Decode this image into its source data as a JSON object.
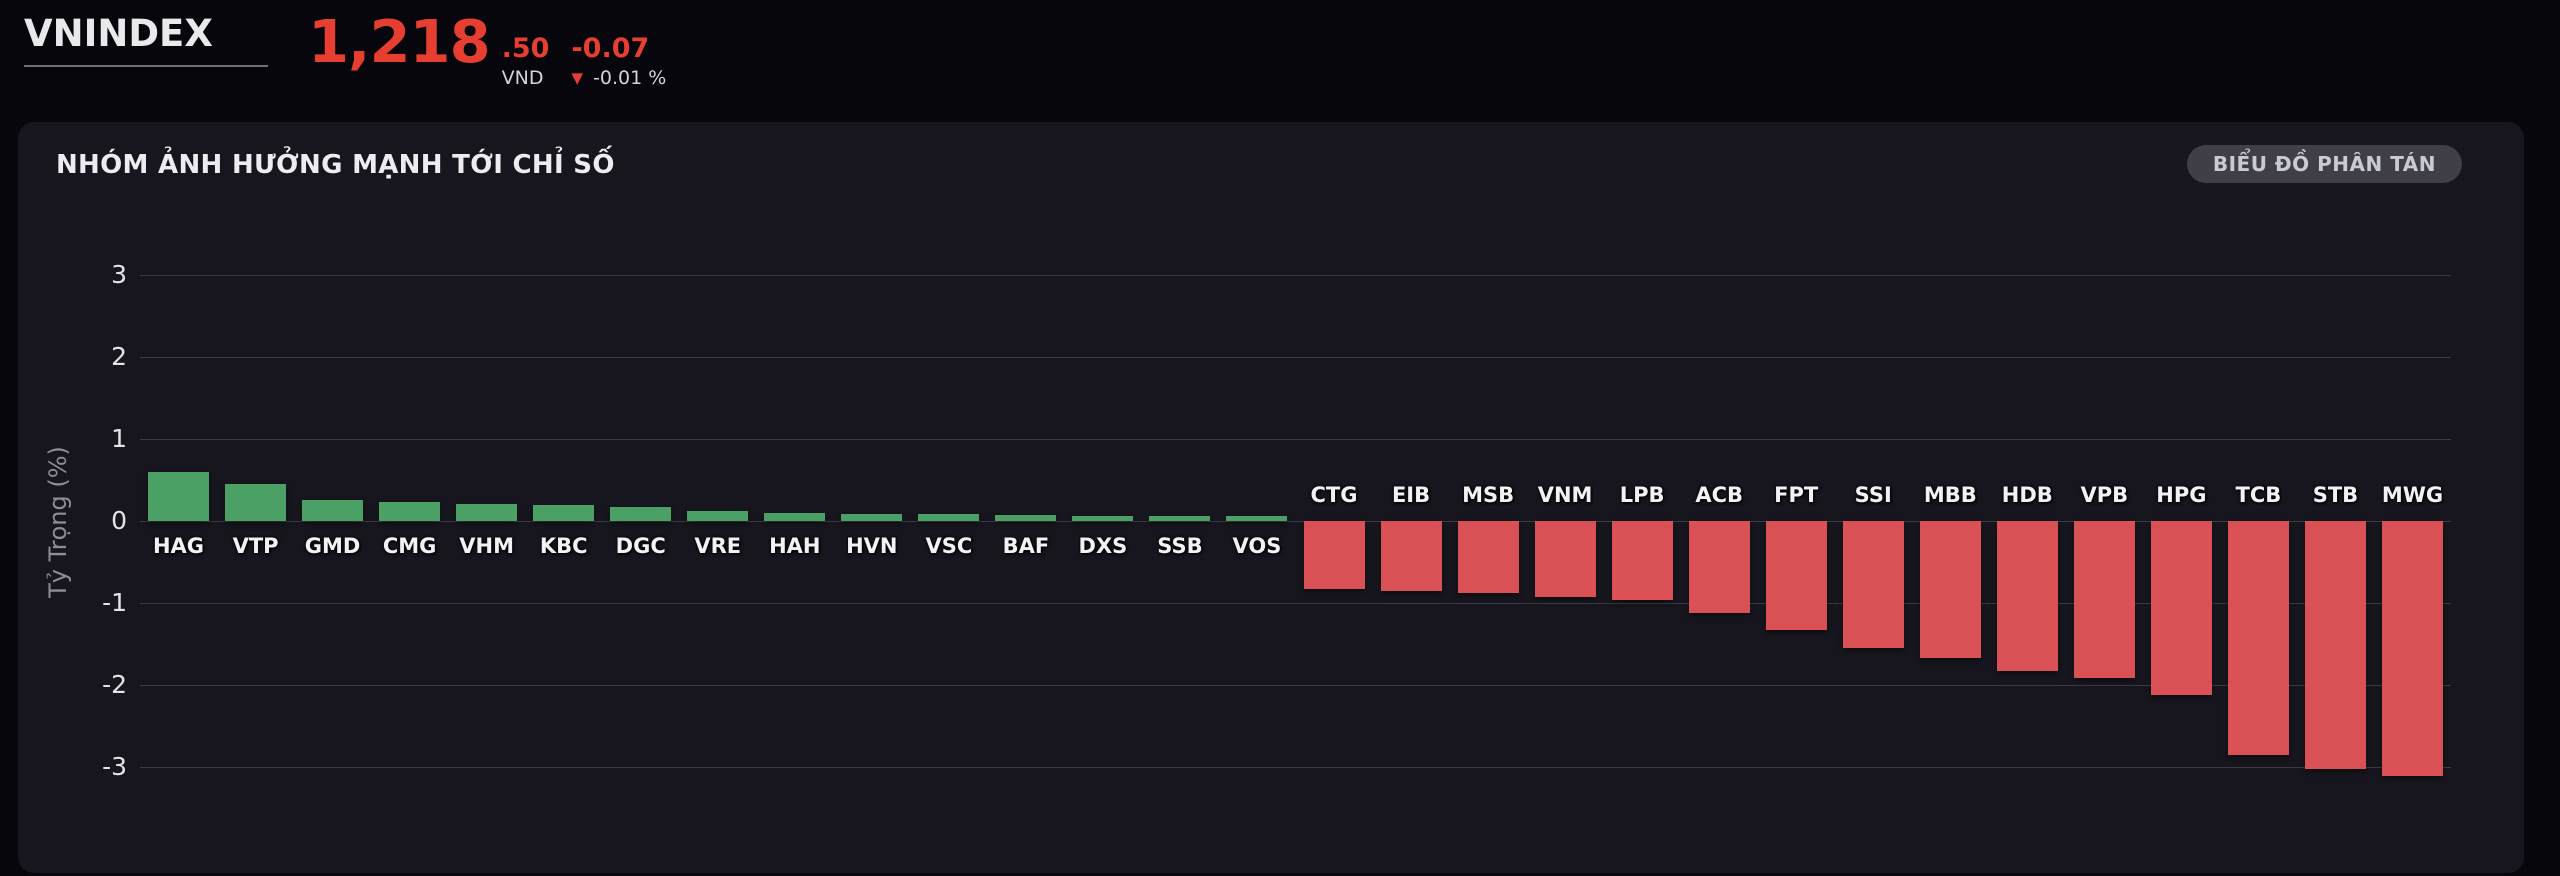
{
  "header": {
    "index_name": "VNINDEX",
    "price_main": "1,218",
    "price_decimal": ".50",
    "currency": "VND",
    "price_change": "-0.07",
    "change_percent": "-0.01 %",
    "down_arrow_icon": "▼"
  },
  "panel": {
    "title": "NHÓM ẢNH HƯỞNG MẠNH TỚI CHỈ SỐ",
    "scatter_button_label": "BIỂU ĐỒ PHÂN TÁN"
  },
  "chart_data": {
    "type": "bar",
    "title": "NHÓM ẢNH HƯỞNG MẠNH TỚI CHỈ SỐ",
    "xlabel": "",
    "ylabel": "Tỷ Trọng (%)",
    "ylim": [
      -3.4,
      3.55
    ],
    "yticks": [
      3,
      2,
      1,
      0,
      -1,
      -2,
      -3
    ],
    "grid": true,
    "legend": false,
    "categories": [
      "HAG",
      "VTP",
      "GMD",
      "CMG",
      "VHM",
      "KBC",
      "DGC",
      "VRE",
      "HAH",
      "HVN",
      "VSC",
      "BAF",
      "DXS",
      "SSB",
      "VOS",
      "CTG",
      "EIB",
      "MSB",
      "VNM",
      "LPB",
      "ACB",
      "FPT",
      "SSI",
      "MBB",
      "HDB",
      "VPB",
      "HPG",
      "TCB",
      "STB",
      "MWG"
    ],
    "values": [
      0.6,
      0.45,
      0.26,
      0.23,
      0.21,
      0.19,
      0.17,
      0.12,
      0.1,
      0.09,
      0.08,
      0.07,
      0.06,
      0.06,
      0.06,
      -0.83,
      -0.85,
      -0.88,
      -0.93,
      -0.96,
      -1.12,
      -1.33,
      -1.55,
      -1.67,
      -1.83,
      -1.91,
      -2.12,
      -2.85,
      -3.02,
      -3.11
    ]
  },
  "colors": {
    "price_red": "#E63E30",
    "bar_positive": "#4BA165",
    "bar_negative": "#D95055",
    "panel_bg": "#17161E",
    "page_bg": "#07060C",
    "gridline": "#3C3B44"
  }
}
